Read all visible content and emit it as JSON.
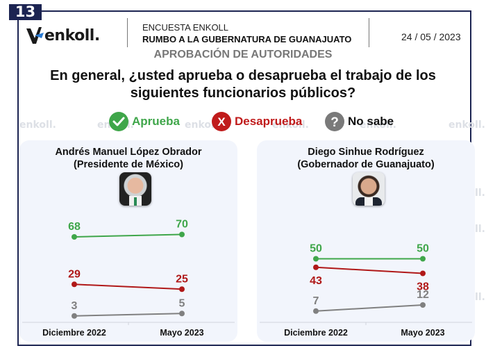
{
  "page_number": "13",
  "brand": {
    "logo_text": "enkoll.",
    "watermark": "enkoll."
  },
  "header": {
    "line1": "ENCUESTA ENKOLL",
    "line2": "RUMBO A LA GUBERNATURA DE GUANAJUATO",
    "date": "24 / 05 / 2023",
    "subtitle": "APROBACIÓN DE AUTORIDADES"
  },
  "question": "En general, ¿usted aprueba o desaprueba el trabajo de los siguientes funcionarios públicos?",
  "legend": [
    {
      "label": "Aprueba",
      "icon": "check-circle-icon",
      "color": "#3fa64a"
    },
    {
      "label": "Desaprueba",
      "icon": "x-circle-icon",
      "color": "#c01b1b"
    },
    {
      "label": "No sabe",
      "icon": "question-circle-icon",
      "color": "#7a7a7a"
    }
  ],
  "colors": {
    "aprueba": "#3fa64a",
    "desaprueba": "#b01818",
    "no_sabe": "#808080",
    "frame": "#1c2452",
    "panel": "#f2f5fc"
  },
  "chart_data": [
    {
      "type": "line",
      "title": "Andrés Manuel López Obrador",
      "subtitle": "(Presidente de México)",
      "categories": [
        "Diciembre 2022",
        "Mayo 2023"
      ],
      "series": [
        {
          "name": "Aprueba",
          "values": [
            68,
            70
          ]
        },
        {
          "name": "Desaprueba",
          "values": [
            29,
            25
          ]
        },
        {
          "name": "No sabe",
          "values": [
            3,
            5
          ]
        }
      ],
      "ylim": [
        0,
        80
      ],
      "grid": false
    },
    {
      "type": "line",
      "title": "Diego Sinhue Rodríguez",
      "subtitle": "(Gobernador de Guanajuato)",
      "categories": [
        "Diciembre 2022",
        "Mayo 2023"
      ],
      "series": [
        {
          "name": "Aprueba",
          "values": [
            50,
            50
          ]
        },
        {
          "name": "Desaprueba",
          "values": [
            43,
            38
          ]
        },
        {
          "name": "No sabe",
          "values": [
            7,
            12
          ]
        }
      ],
      "ylim": [
        0,
        80
      ],
      "grid": false
    }
  ]
}
